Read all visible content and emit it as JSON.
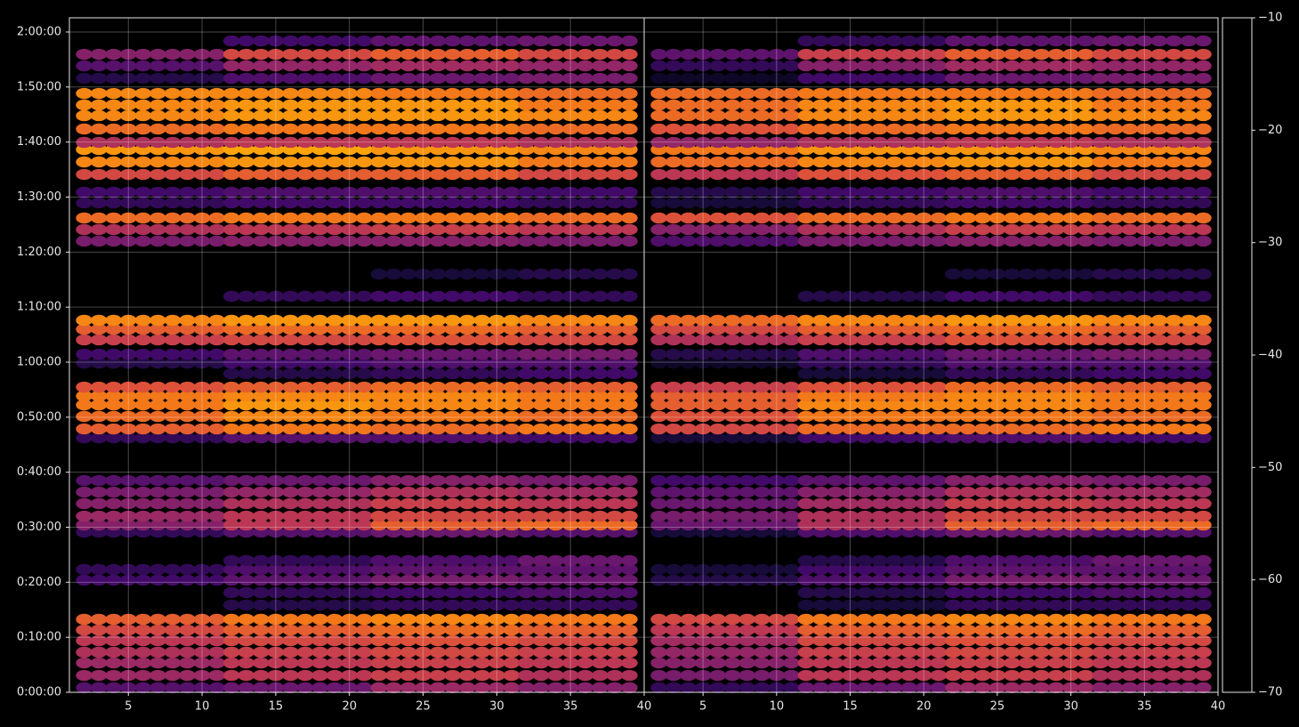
{
  "chart_data": [
    {
      "type": "dot-heatmap",
      "colormap": "inferno",
      "grid": true,
      "xlim": [
        1,
        40
      ],
      "xticks": [
        5,
        10,
        15,
        20,
        25,
        30,
        35,
        40
      ],
      "ylim": [
        0,
        7355
      ],
      "yticks": [
        {
          "value": 0,
          "label": "0:00:00"
        },
        {
          "value": 600,
          "label": "0:10:00"
        },
        {
          "value": 1200,
          "label": "0:20:00"
        },
        {
          "value": 1800,
          "label": "0:30:00"
        },
        {
          "value": 2400,
          "label": "0:40:00"
        },
        {
          "value": 3000,
          "label": "0:50:00"
        },
        {
          "value": 3600,
          "label": "1:00:00"
        },
        {
          "value": 4200,
          "label": "1:10:00"
        },
        {
          "value": 4800,
          "label": "1:20:00"
        },
        {
          "value": 5400,
          "label": "1:30:00"
        },
        {
          "value": 6000,
          "label": "1:40:00"
        },
        {
          "value": 6600,
          "label": "1:50:00"
        },
        {
          "value": 7200,
          "label": "2:00:00"
        }
      ],
      "xbins": [
        1.5,
        11.5,
        21.5,
        31.5,
        39.5
      ],
      "y": [
        50,
        184,
        320,
        437,
        563,
        679,
        796,
        951,
        1087,
        1223,
        1339,
        1436,
        1747,
        1824,
        1921,
        2057,
        2183,
        2309,
        2775,
        2872,
        3008,
        3134,
        3231,
        3328,
        3474,
        3590,
        3687,
        3843,
        3959,
        4056,
        4318,
        4561,
        4920,
        5046,
        5172,
        5337,
        5453,
        5647,
        5783,
        5919,
        5997,
        6142,
        6288,
        6404,
        6530,
        6695,
        6831,
        6957,
        7103
      ],
      "values": [
        [
          -55,
          -52,
          -45,
          -48
        ],
        [
          -45,
          -40,
          -38,
          -42
        ],
        [
          -45,
          -40,
          -38,
          -40
        ],
        [
          -42,
          -38,
          -36,
          -38
        ],
        [
          -40,
          -36,
          -34,
          -36
        ],
        [
          -36,
          -32,
          -30,
          -32
        ],
        [
          -32,
          -28,
          -26,
          -28
        ],
        [
          null,
          -62,
          -60,
          -60
        ],
        [
          null,
          -60,
          -58,
          -56
        ],
        [
          -58,
          -54,
          -50,
          -52
        ],
        [
          -60,
          -56,
          -54,
          -54
        ],
        [
          null,
          -60,
          -56,
          -52
        ],
        [
          -60,
          -55,
          -52,
          -55
        ],
        [
          -48,
          -40,
          -32,
          -30
        ],
        [
          -45,
          -40,
          -36,
          -36
        ],
        [
          -48,
          -42,
          -38,
          -40
        ],
        [
          -50,
          -46,
          -42,
          -44
        ],
        [
          -55,
          -52,
          -48,
          -50
        ],
        [
          -60,
          -55,
          -56,
          -58
        ],
        [
          -32,
          -28,
          -30,
          -28
        ],
        [
          -30,
          -26,
          -28,
          -30
        ],
        [
          -28,
          -24,
          -26,
          -28
        ],
        [
          -28,
          -26,
          -26,
          -28
        ],
        [
          -34,
          -32,
          -30,
          -32
        ],
        [
          null,
          -62,
          -60,
          -58
        ],
        [
          -62,
          -58,
          -56,
          -56
        ],
        [
          -58,
          -54,
          -52,
          -50
        ],
        [
          -38,
          -36,
          -34,
          -36
        ],
        [
          -32,
          -30,
          -30,
          -32
        ],
        [
          -26,
          -24,
          -24,
          -26
        ],
        [
          null,
          -60,
          -58,
          -60
        ],
        [
          null,
          null,
          -64,
          -62
        ],
        [
          -50,
          -48,
          -48,
          -50
        ],
        [
          -42,
          -40,
          -38,
          -40
        ],
        [
          -30,
          -28,
          -28,
          -30
        ],
        [
          -60,
          -58,
          -58,
          -60
        ],
        [
          -58,
          -56,
          -56,
          -58
        ],
        [
          -36,
          -32,
          -32,
          -36
        ],
        [
          -26,
          -24,
          -24,
          -28
        ],
        [
          -24,
          -22,
          -24,
          -26
        ],
        [
          -42,
          -40,
          -40,
          -42
        ],
        [
          -30,
          -28,
          -28,
          -30
        ],
        [
          -26,
          -24,
          -24,
          -26
        ],
        [
          -26,
          -24,
          -24,
          -28
        ],
        [
          -26,
          -26,
          -28,
          -30
        ],
        [
          -62,
          -56,
          -52,
          -50
        ],
        [
          -55,
          -46,
          -44,
          -46
        ],
        [
          -48,
          -36,
          -32,
          -36
        ],
        [
          null,
          -58,
          -54,
          -52
        ]
      ]
    },
    {
      "type": "dot-heatmap",
      "colormap": "inferno",
      "grid": true,
      "xlim": [
        1,
        40
      ],
      "xticks": [
        5,
        10,
        15,
        20,
        25,
        30,
        35,
        40
      ],
      "ylim": [
        0,
        7355
      ],
      "xbins": [
        1.5,
        11.5,
        21.5,
        31.5,
        39.5
      ],
      "y": [
        50,
        184,
        320,
        437,
        563,
        679,
        796,
        951,
        1087,
        1223,
        1339,
        1436,
        1747,
        1824,
        1921,
        2057,
        2183,
        2309,
        2775,
        2872,
        3008,
        3134,
        3231,
        3328,
        3474,
        3590,
        3687,
        3843,
        3959,
        4056,
        4318,
        4561,
        4920,
        5046,
        5172,
        5337,
        5453,
        5647,
        5783,
        5919,
        5997,
        6142,
        6288,
        6404,
        6530,
        6695,
        6831,
        6957,
        7103
      ],
      "values": [
        [
          -60,
          -52,
          -45,
          -48
        ],
        [
          -50,
          -40,
          -38,
          -42
        ],
        [
          -48,
          -40,
          -38,
          -40
        ],
        [
          -46,
          -38,
          -36,
          -38
        ],
        [
          -44,
          -36,
          -34,
          -36
        ],
        [
          -40,
          -32,
          -30,
          -32
        ],
        [
          -36,
          -28,
          -26,
          -28
        ],
        [
          null,
          -64,
          -60,
          -60
        ],
        [
          null,
          -62,
          -58,
          -56
        ],
        [
          -62,
          -56,
          -50,
          -52
        ],
        [
          -64,
          -58,
          -54,
          -54
        ],
        [
          null,
          -62,
          -56,
          -52
        ],
        [
          -64,
          -56,
          -52,
          -55
        ],
        [
          -52,
          -42,
          -32,
          -30
        ],
        [
          -50,
          -42,
          -36,
          -36
        ],
        [
          -52,
          -44,
          -38,
          -40
        ],
        [
          -54,
          -48,
          -42,
          -44
        ],
        [
          -58,
          -54,
          -48,
          -50
        ],
        [
          -64,
          -58,
          -56,
          -58
        ],
        [
          -36,
          -30,
          -30,
          -28
        ],
        [
          -34,
          -28,
          -28,
          -30
        ],
        [
          -32,
          -26,
          -26,
          -28
        ],
        [
          -32,
          -28,
          -26,
          -28
        ],
        [
          -38,
          -34,
          -30,
          -32
        ],
        [
          null,
          -64,
          -60,
          -58
        ],
        [
          -66,
          -60,
          -56,
          -56
        ],
        [
          -62,
          -56,
          -52,
          -50
        ],
        [
          -42,
          -38,
          -34,
          -36
        ],
        [
          -36,
          -32,
          -30,
          -32
        ],
        [
          -30,
          -26,
          -24,
          -26
        ],
        [
          null,
          -62,
          -58,
          -60
        ],
        [
          null,
          null,
          -64,
          -62
        ],
        [
          -56,
          -50,
          -48,
          -50
        ],
        [
          -48,
          -42,
          -38,
          -40
        ],
        [
          -34,
          -30,
          -28,
          -30
        ],
        [
          -64,
          -60,
          -58,
          -60
        ],
        [
          -62,
          -58,
          -56,
          -58
        ],
        [
          -40,
          -34,
          -32,
          -36
        ],
        [
          -30,
          -26,
          -24,
          -28
        ],
        [
          -28,
          -24,
          -24,
          -26
        ],
        [
          -46,
          -42,
          -40,
          -42
        ],
        [
          -34,
          -30,
          -28,
          -30
        ],
        [
          -30,
          -26,
          -24,
          -26
        ],
        [
          -30,
          -26,
          -24,
          -28
        ],
        [
          -30,
          -28,
          -28,
          -30
        ],
        [
          -66,
          -58,
          -52,
          -50
        ],
        [
          -60,
          -48,
          -44,
          -46
        ],
        [
          -54,
          -38,
          -32,
          -36
        ],
        [
          null,
          -60,
          -54,
          -52
        ]
      ]
    },
    {
      "type": "colorbar",
      "colormap": "inferno",
      "clim": [
        -70,
        -10
      ],
      "ticks": [
        {
          "value": -70,
          "label": "−70"
        },
        {
          "value": -60,
          "label": "−60"
        },
        {
          "value": -50,
          "label": "−50"
        },
        {
          "value": -40,
          "label": "−40"
        },
        {
          "value": -30,
          "label": "−30"
        },
        {
          "value": -20,
          "label": "−20"
        },
        {
          "value": -10,
          "label": "−10"
        }
      ]
    }
  ]
}
